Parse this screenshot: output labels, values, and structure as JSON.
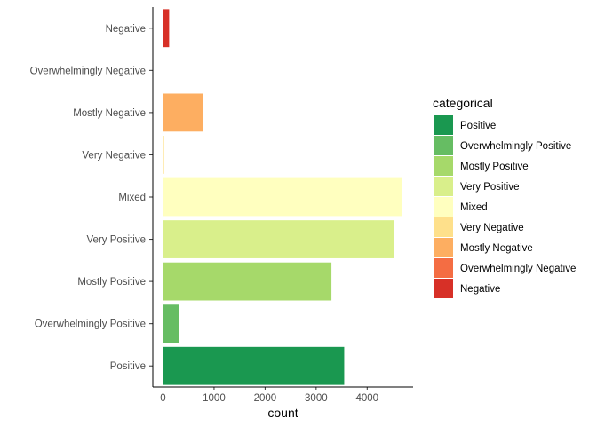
{
  "chart_data": {
    "type": "bar",
    "orientation": "horizontal",
    "categories": [
      "Positive",
      "Overwhelmingly Positive",
      "Mostly Positive",
      "Very Positive",
      "Mixed",
      "Very Negative",
      "Mostly Negative",
      "Overwhelmingly Negative",
      "Negative"
    ],
    "values": [
      3550,
      310,
      3300,
      4520,
      4680,
      20,
      790,
      0,
      120
    ],
    "colors": [
      "#1a9850",
      "#66bd63",
      "#a6d96a",
      "#d9ef8b",
      "#ffffbf",
      "#fee08b",
      "#fdae61",
      "#f46d43",
      "#d73027"
    ],
    "xlabel": "count",
    "ylabel": "",
    "xlim": [
      -200,
      4900
    ],
    "xticks": [
      0,
      1000,
      2000,
      3000,
      4000
    ],
    "xtick_labels": [
      "0",
      "1000",
      "2000",
      "3000",
      "4000"
    ],
    "grid": false,
    "legend": {
      "title": "categorical",
      "placement": "right",
      "entries": [
        "Positive",
        "Overwhelmingly Positive",
        "Mostly Positive",
        "Very Positive",
        "Mixed",
        "Very Negative",
        "Mostly Negative",
        "Overwhelmingly Negative",
        "Negative"
      ]
    }
  }
}
